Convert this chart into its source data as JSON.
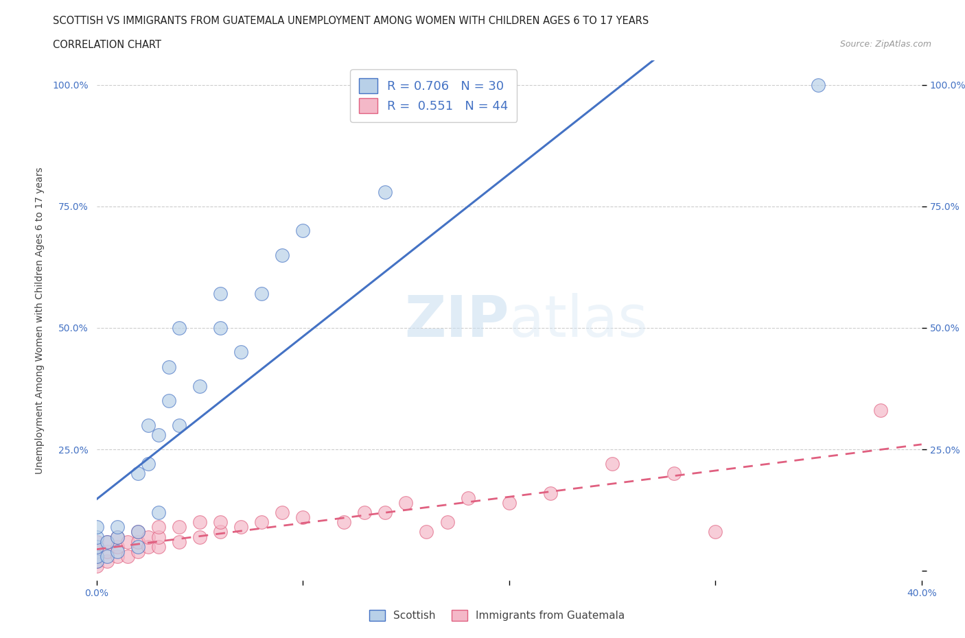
{
  "title_line1": "SCOTTISH VS IMMIGRANTS FROM GUATEMALA UNEMPLOYMENT AMONG WOMEN WITH CHILDREN AGES 6 TO 17 YEARS",
  "title_line2": "CORRELATION CHART",
  "source": "Source: ZipAtlas.com",
  "ylabel": "Unemployment Among Women with Children Ages 6 to 17 years",
  "xlim": [
    0.0,
    0.4
  ],
  "ylim": [
    -0.02,
    1.05
  ],
  "scottish_R": 0.706,
  "scottish_N": 30,
  "guatemala_R": 0.551,
  "guatemala_N": 44,
  "scottish_color": "#b8d0e8",
  "scottish_line_color": "#4472c4",
  "guatemala_color": "#f4b8c8",
  "guatemala_line_color": "#e06080",
  "scottish_x": [
    0.0,
    0.0,
    0.0,
    0.0,
    0.0,
    0.005,
    0.005,
    0.01,
    0.01,
    0.01,
    0.02,
    0.02,
    0.02,
    0.025,
    0.025,
    0.03,
    0.03,
    0.035,
    0.035,
    0.04,
    0.04,
    0.05,
    0.06,
    0.06,
    0.07,
    0.08,
    0.09,
    0.1,
    0.14,
    0.35
  ],
  "scottish_y": [
    0.02,
    0.03,
    0.05,
    0.07,
    0.09,
    0.03,
    0.06,
    0.04,
    0.07,
    0.09,
    0.05,
    0.08,
    0.2,
    0.22,
    0.3,
    0.12,
    0.28,
    0.35,
    0.42,
    0.3,
    0.5,
    0.38,
    0.5,
    0.57,
    0.45,
    0.57,
    0.65,
    0.7,
    0.78,
    1.0
  ],
  "guatemala_x": [
    0.0,
    0.0,
    0.0,
    0.0,
    0.0,
    0.005,
    0.005,
    0.005,
    0.01,
    0.01,
    0.01,
    0.015,
    0.015,
    0.02,
    0.02,
    0.02,
    0.025,
    0.025,
    0.03,
    0.03,
    0.03,
    0.04,
    0.04,
    0.05,
    0.05,
    0.06,
    0.06,
    0.07,
    0.08,
    0.09,
    0.1,
    0.12,
    0.13,
    0.14,
    0.15,
    0.16,
    0.17,
    0.18,
    0.2,
    0.22,
    0.25,
    0.28,
    0.3,
    0.38
  ],
  "guatemala_y": [
    0.01,
    0.02,
    0.03,
    0.04,
    0.06,
    0.02,
    0.04,
    0.06,
    0.03,
    0.05,
    0.07,
    0.03,
    0.06,
    0.04,
    0.06,
    0.08,
    0.05,
    0.07,
    0.05,
    0.07,
    0.09,
    0.06,
    0.09,
    0.07,
    0.1,
    0.08,
    0.1,
    0.09,
    0.1,
    0.12,
    0.11,
    0.1,
    0.12,
    0.12,
    0.14,
    0.08,
    0.1,
    0.15,
    0.14,
    0.16,
    0.22,
    0.2,
    0.08,
    0.33
  ]
}
